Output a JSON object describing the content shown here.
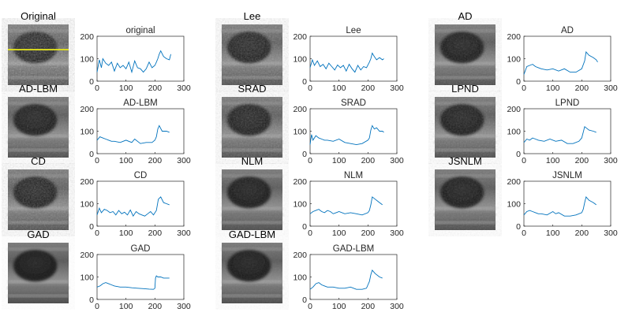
{
  "figure": {
    "axes": {
      "xlim": [
        0,
        300
      ],
      "ylim": [
        0,
        200
      ],
      "xticks": [
        0,
        100,
        200,
        300
      ],
      "yticks": [
        0,
        100,
        200
      ]
    },
    "line_color": "#0072BD",
    "profile_line_color": "#E8E81A"
  },
  "panels": [
    {
      "image_title": "Original",
      "plot_title": "original",
      "show_profile_line": true
    },
    {
      "image_title": "Lee",
      "plot_title": "Lee"
    },
    {
      "image_title": "AD",
      "plot_title": "AD"
    },
    {
      "image_title": "AD-LBM",
      "plot_title": "AD-LBM"
    },
    {
      "image_title": "SRAD",
      "plot_title": "SRAD"
    },
    {
      "image_title": "LPND",
      "plot_title": "LPND"
    },
    {
      "image_title": "CD",
      "plot_title": "CD"
    },
    {
      "image_title": "NLM",
      "plot_title": "NLM"
    },
    {
      "image_title": "JSNLM",
      "plot_title": "JSNLM"
    },
    {
      "image_title": "GAD",
      "plot_title": "GAD"
    },
    {
      "image_title": "GAD-LBM",
      "plot_title": "GAD-LBM"
    }
  ],
  "chart_data": [
    {
      "type": "line",
      "title": "original",
      "xlim": [
        0,
        300
      ],
      "ylim": [
        0,
        200
      ],
      "x": [
        0,
        8,
        15,
        20,
        30,
        40,
        50,
        60,
        70,
        80,
        90,
        100,
        110,
        120,
        130,
        140,
        150,
        160,
        170,
        180,
        190,
        200,
        205,
        210,
        215,
        220,
        230,
        240,
        250,
        255
      ],
      "y": [
        40,
        95,
        60,
        100,
        80,
        70,
        85,
        45,
        80,
        60,
        70,
        55,
        85,
        40,
        90,
        60,
        55,
        40,
        55,
        85,
        60,
        70,
        85,
        100,
        120,
        135,
        110,
        100,
        95,
        120
      ]
    },
    {
      "type": "line",
      "title": "Lee",
      "xlim": [
        0,
        300
      ],
      "ylim": [
        0,
        200
      ],
      "x": [
        0,
        8,
        15,
        25,
        35,
        45,
        55,
        65,
        75,
        85,
        95,
        105,
        115,
        125,
        135,
        145,
        155,
        165,
        175,
        185,
        195,
        205,
        210,
        215,
        222,
        230,
        240,
        250,
        255
      ],
      "y": [
        60,
        95,
        70,
        90,
        65,
        75,
        55,
        80,
        65,
        50,
        72,
        60,
        70,
        45,
        75,
        55,
        40,
        70,
        50,
        65,
        60,
        85,
        100,
        125,
        110,
        95,
        105,
        95,
        100
      ]
    },
    {
      "type": "line",
      "title": "AD",
      "xlim": [
        0,
        300
      ],
      "ylim": [
        0,
        200
      ],
      "x": [
        0,
        10,
        20,
        30,
        40,
        50,
        60,
        80,
        100,
        120,
        140,
        160,
        180,
        200,
        210,
        215,
        225,
        240,
        250,
        255
      ],
      "y": [
        30,
        65,
        70,
        75,
        65,
        60,
        55,
        50,
        55,
        45,
        55,
        40,
        40,
        55,
        90,
        130,
        115,
        105,
        95,
        85
      ]
    },
    {
      "type": "line",
      "title": "AD-LBM",
      "xlim": [
        0,
        300
      ],
      "ylim": [
        0,
        200
      ],
      "x": [
        0,
        10,
        20,
        30,
        40,
        50,
        60,
        80,
        100,
        120,
        130,
        150,
        170,
        190,
        200,
        205,
        210,
        215,
        225,
        240,
        250
      ],
      "y": [
        60,
        75,
        70,
        65,
        60,
        55,
        55,
        50,
        60,
        50,
        65,
        45,
        50,
        50,
        60,
        75,
        110,
        125,
        100,
        100,
        95
      ]
    },
    {
      "type": "line",
      "title": "SRAD",
      "xlim": [
        0,
        300
      ],
      "ylim": [
        0,
        200
      ],
      "x": [
        0,
        5,
        10,
        20,
        30,
        40,
        50,
        60,
        80,
        100,
        120,
        140,
        160,
        180,
        200,
        205,
        210,
        215,
        222,
        230,
        240,
        250,
        255
      ],
      "y": [
        40,
        85,
        60,
        80,
        70,
        65,
        60,
        60,
        55,
        65,
        50,
        45,
        40,
        45,
        60,
        70,
        105,
        125,
        110,
        115,
        100,
        100,
        95
      ]
    },
    {
      "type": "line",
      "title": "LPND",
      "xlim": [
        0,
        300
      ],
      "ylim": [
        0,
        200
      ],
      "x": [
        0,
        10,
        20,
        30,
        40,
        50,
        70,
        90,
        110,
        130,
        150,
        170,
        190,
        200,
        205,
        210,
        215,
        225,
        240,
        250
      ],
      "y": [
        50,
        65,
        60,
        70,
        65,
        60,
        55,
        65,
        55,
        60,
        45,
        45,
        55,
        70,
        95,
        120,
        115,
        105,
        100,
        95
      ]
    },
    {
      "type": "line",
      "title": "CD",
      "xlim": [
        0,
        300
      ],
      "ylim": [
        0,
        200
      ],
      "x": [
        0,
        8,
        15,
        25,
        35,
        45,
        55,
        65,
        75,
        85,
        95,
        105,
        115,
        125,
        135,
        145,
        155,
        165,
        175,
        185,
        195,
        205,
        212,
        220,
        230,
        240,
        250
      ],
      "y": [
        50,
        80,
        60,
        75,
        70,
        60,
        65,
        50,
        70,
        55,
        62,
        50,
        72,
        45,
        65,
        55,
        50,
        45,
        55,
        65,
        50,
        70,
        120,
        130,
        105,
        100,
        95
      ]
    },
    {
      "type": "line",
      "title": "NLM",
      "xlim": [
        0,
        300
      ],
      "ylim": [
        0,
        200
      ],
      "x": [
        0,
        10,
        20,
        30,
        40,
        50,
        60,
        70,
        80,
        90,
        100,
        120,
        140,
        160,
        180,
        200,
        205,
        210,
        215,
        225,
        240,
        250
      ],
      "y": [
        55,
        65,
        70,
        75,
        65,
        60,
        70,
        65,
        55,
        60,
        65,
        55,
        60,
        55,
        50,
        60,
        70,
        95,
        130,
        120,
        105,
        95
      ]
    },
    {
      "type": "line",
      "title": "JSNLM",
      "xlim": [
        0,
        300
      ],
      "ylim": [
        0,
        200
      ],
      "x": [
        0,
        10,
        20,
        30,
        40,
        50,
        60,
        80,
        100,
        110,
        120,
        140,
        160,
        180,
        200,
        205,
        210,
        215,
        225,
        240,
        250
      ],
      "y": [
        50,
        65,
        70,
        65,
        60,
        55,
        55,
        50,
        65,
        55,
        60,
        45,
        45,
        50,
        60,
        75,
        105,
        130,
        115,
        105,
        95
      ]
    },
    {
      "type": "line",
      "title": "GAD",
      "xlim": [
        0,
        300
      ],
      "ylim": [
        0,
        200
      ],
      "x": [
        0,
        10,
        20,
        30,
        40,
        50,
        60,
        80,
        100,
        120,
        140,
        160,
        180,
        195,
        200,
        202,
        205,
        210,
        220,
        230,
        240,
        250
      ],
      "y": [
        55,
        60,
        70,
        75,
        70,
        65,
        60,
        55,
        55,
        52,
        50,
        48,
        46,
        45,
        50,
        95,
        105,
        100,
        100,
        95,
        95,
        95
      ]
    },
    {
      "type": "line",
      "title": "GAD-LBM",
      "xlim": [
        0,
        300
      ],
      "ylim": [
        0,
        200
      ],
      "x": [
        0,
        10,
        20,
        30,
        40,
        50,
        60,
        80,
        100,
        120,
        140,
        160,
        180,
        195,
        200,
        205,
        210,
        215,
        225,
        240,
        250
      ],
      "y": [
        45,
        55,
        70,
        75,
        65,
        60,
        55,
        55,
        50,
        50,
        55,
        45,
        45,
        50,
        65,
        80,
        110,
        130,
        115,
        100,
        95
      ]
    }
  ]
}
